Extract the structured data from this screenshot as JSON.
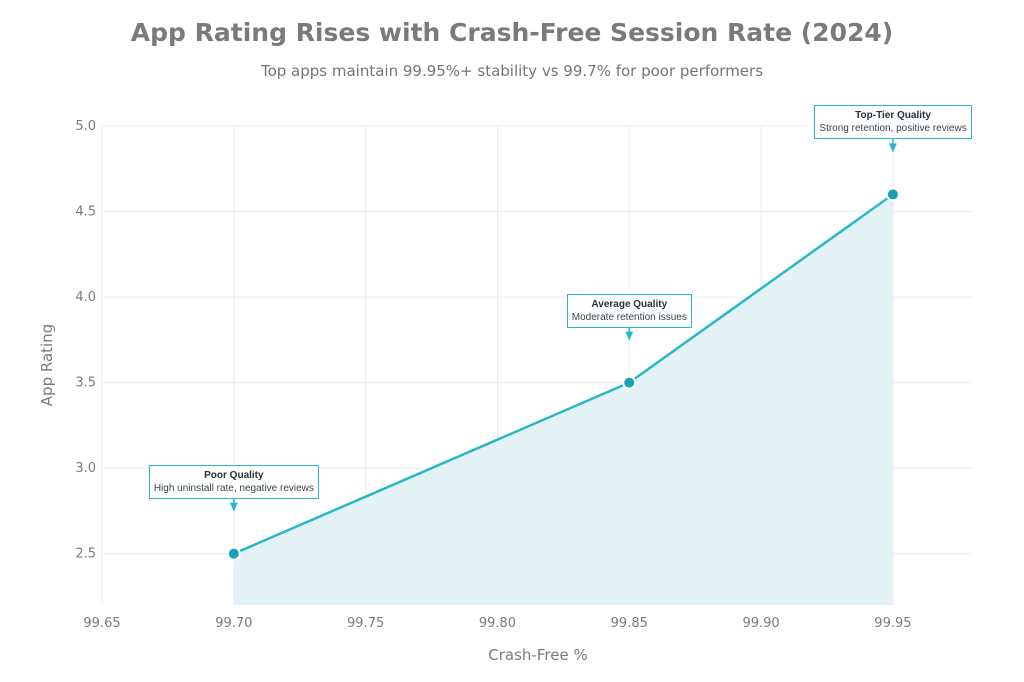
{
  "chart_data": {
    "type": "area",
    "title": "App Rating Rises with Crash-Free Session Rate (2024)",
    "subtitle": "Top apps maintain 99.95%+ stability vs 99.7% for poor performers",
    "xlabel": "Crash-Free %",
    "ylabel": "App Rating",
    "xlim": [
      99.65,
      99.98
    ],
    "ylim": [
      2.2,
      5.0
    ],
    "xticks": [
      "99.65",
      "99.70",
      "99.75",
      "99.80",
      "99.85",
      "99.90",
      "99.95"
    ],
    "yticks": [
      "2.5",
      "3.0",
      "3.5",
      "4.0",
      "4.5",
      "5.0"
    ],
    "grid": true,
    "series": [
      {
        "x": [
          99.7,
          99.85,
          99.95
        ],
        "y": [
          2.5,
          3.5,
          4.6
        ]
      }
    ],
    "annotations": [
      {
        "x": 99.7,
        "y": 2.5,
        "title": "Poor Quality",
        "text": "High uninstall rate, negative reviews"
      },
      {
        "x": 99.85,
        "y": 3.5,
        "title": "Average Quality",
        "text": "Moderate retention issues"
      },
      {
        "x": 99.95,
        "y": 4.6,
        "title": "Top-Tier Quality",
        "text": "Strong retention, positive reviews"
      }
    ],
    "colors": {
      "line": "#29b6c9",
      "fill": "#e2f2f4",
      "marker": "#17a2b8",
      "grid": "#ececec"
    }
  }
}
